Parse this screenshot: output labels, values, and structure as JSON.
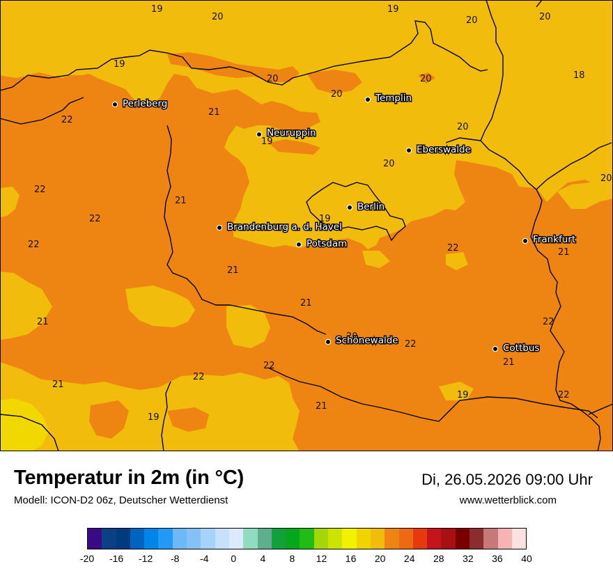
{
  "header": {
    "title": "Temperatur in 2m (in °C)",
    "model": "Modell: ICON-D2 06z, Deutscher Wetterdienst",
    "datetime": "Di, 26.05.2026 09:00 Uhr",
    "website": "www.wetterblick.com"
  },
  "map": {
    "colors": {
      "t18_20": "#f2bc0d",
      "t20_22": "#ee8512",
      "t16_18": "#f0d800",
      "border": "#000000"
    },
    "cities": [
      {
        "name": "Perleberg"
      },
      {
        "name": "Templin"
      },
      {
        "name": "Neuruppin"
      },
      {
        "name": "Eberswalde"
      },
      {
        "name": "Berlin"
      },
      {
        "name": "Brandenburg a. d. Havel"
      },
      {
        "name": "Potsdam"
      },
      {
        "name": "Frankfurt"
      },
      {
        "name": "Schönewalde"
      },
      {
        "name": "Cottbus"
      }
    ],
    "temperature_labels": [
      "19",
      "20",
      "19",
      "20",
      "20",
      "18",
      "19",
      "20",
      "20",
      "20",
      "21",
      "22",
      "20",
      "19",
      "20",
      "22",
      "21",
      "22",
      "20",
      "22",
      "19",
      "22",
      "21",
      "21",
      "21",
      "21",
      "22",
      "22",
      "20",
      "21",
      "22",
      "22",
      "21",
      "19",
      "22",
      "21",
      "19"
    ]
  },
  "legend": {
    "tick_labels": [
      "-20",
      "-16",
      "-12",
      "-8",
      "-4",
      "0",
      "4",
      "8",
      "12",
      "16",
      "20",
      "24",
      "28",
      "32",
      "36",
      "40"
    ],
    "swatches": [
      "#3a0a84",
      "#0b3f86",
      "#003c7d",
      "#0063c0",
      "#0085e8",
      "#2199f5",
      "#6db8f7",
      "#85c1f7",
      "#a6d3fa",
      "#c6e1fc",
      "#dbeafd",
      "#8fdcc0",
      "#5fae8d",
      "#10a13a",
      "#05a81d",
      "#20bd14",
      "#a4d60a",
      "#cde400",
      "#f2f200",
      "#f0d400",
      "#f2bc0d",
      "#ee8512",
      "#ee6a12",
      "#e63a0e",
      "#c3151b",
      "#a81013",
      "#7a0000",
      "#8c2d2d",
      "#c77878",
      "#f5b3b3",
      "#fde0e0"
    ]
  }
}
